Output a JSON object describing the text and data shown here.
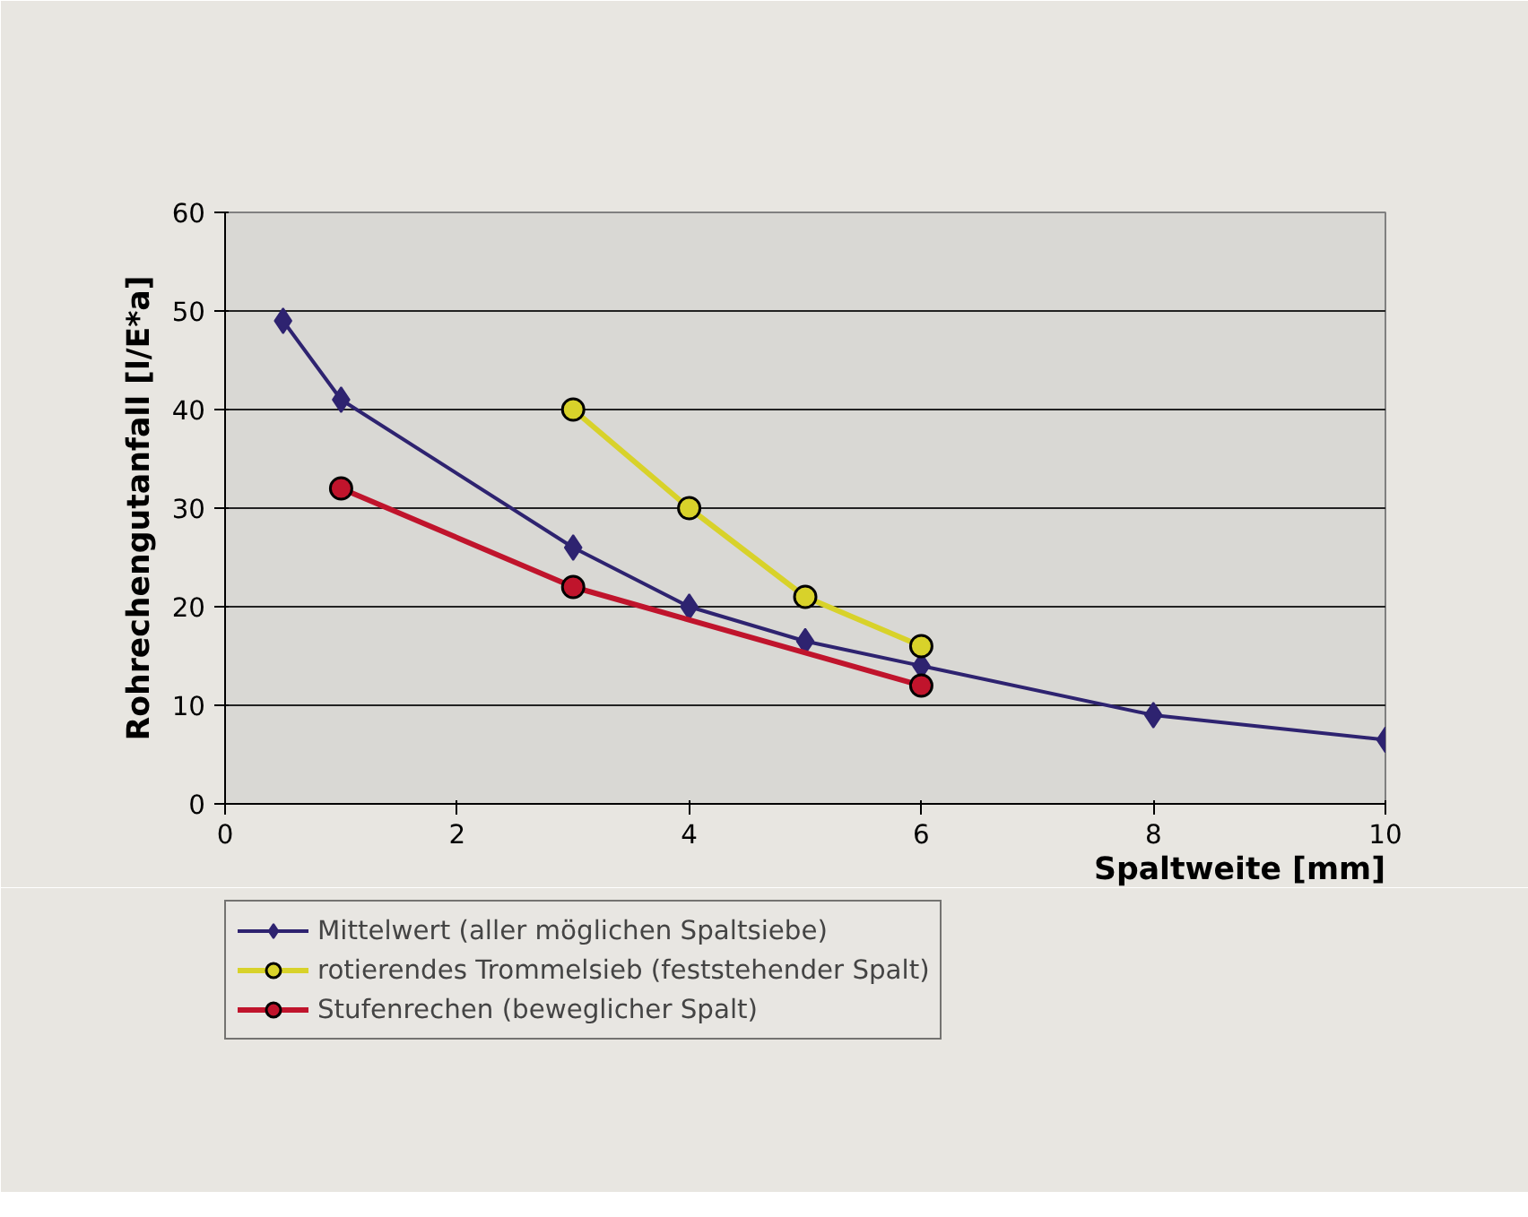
{
  "chart_data": {
    "type": "line",
    "xlabel": "Spaltweite [mm]",
    "ylabel": "Rohrechengutanfall [l/E*a]",
    "xlim": [
      0,
      10
    ],
    "xticks": [
      0,
      2,
      4,
      6,
      8,
      10
    ],
    "ylim": [
      0,
      60
    ],
    "yticks": [
      0,
      10,
      20,
      30,
      40,
      50,
      60
    ],
    "grid": "y",
    "legend": "bottom left",
    "line_style": "solid",
    "series": [
      {
        "name": "Mittelwert (aller möglichen Spaltsiebe)",
        "color": "#2e2370",
        "marker": "diamond",
        "x": [
          0.5,
          1,
          3,
          4,
          5,
          6,
          8,
          10
        ],
        "values": [
          49,
          41,
          26,
          20,
          16.5,
          14,
          9,
          6.5
        ]
      },
      {
        "name": "rotierendes Trommelsieb (feststehender Spalt)",
        "color": "#d8d22a",
        "marker": "circle",
        "x": [
          3,
          4,
          5,
          6
        ],
        "values": [
          40,
          30,
          21,
          16
        ]
      },
      {
        "name": "Stufenrechen (beweglicher Spalt)",
        "color": "#c0142c",
        "marker": "circle",
        "x": [
          1,
          3,
          6
        ],
        "values": [
          32,
          22,
          12
        ]
      }
    ]
  }
}
